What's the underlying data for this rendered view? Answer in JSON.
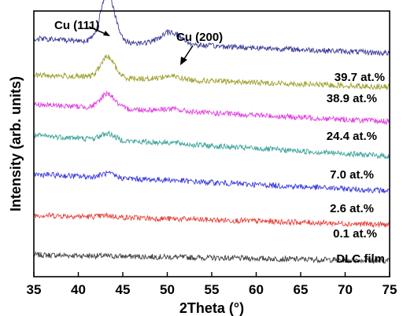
{
  "chart_data": {
    "type": "line",
    "xlabel": "2Theta (°)",
    "ylabel": "Intensity (arb. units)",
    "xlim": [
      35,
      75
    ],
    "x_ticks": [
      35,
      40,
      45,
      50,
      55,
      60,
      65,
      70,
      75
    ],
    "y_ticks_shown": false,
    "grid": false,
    "legend": "inline labels at right of each trace",
    "annotations": [
      {
        "text": "Cu (111)",
        "x": 43.3
      },
      {
        "text": "Cu (200)",
        "x": 50.4
      }
    ],
    "series": [
      {
        "name": "DLC film",
        "color": "#404040",
        "offset": 0.0,
        "start": 0.45,
        "end": 0.28,
        "peak111": 0.0,
        "peak200": 0.0
      },
      {
        "name": "0.1 at.%",
        "color": "#e8413a",
        "offset": 1.0,
        "start": 0.6,
        "end": 0.32,
        "peak111": 0.04,
        "peak200": 0.0
      },
      {
        "name": "2.6 at.%",
        "color": "#3a3ae0",
        "offset": 2.0,
        "start": 0.78,
        "end": 0.3,
        "peak111": 0.12,
        "peak200": 0.02
      },
      {
        "name": "7.0 at.%",
        "color": "#3aa39a",
        "offset": 3.0,
        "start": 0.9,
        "end": 0.3,
        "peak111": 0.18,
        "peak200": 0.03
      },
      {
        "name": "24.4 at.%",
        "color": "#e040e0",
        "offset": 4.0,
        "start": 0.8,
        "end": 0.3,
        "peak111": 0.42,
        "peak200": 0.06
      },
      {
        "name": "38.9 at.%",
        "color": "#a0a030",
        "offset": 5.0,
        "start": 0.65,
        "end": 0.3,
        "peak111": 0.6,
        "peak200": 0.1
      },
      {
        "name": "39.7 at.%",
        "color": "#3a3a9a",
        "offset": 6.0,
        "start": 0.7,
        "end": 0.28,
        "peak111": 1.4,
        "peak200": 0.35
      }
    ]
  }
}
